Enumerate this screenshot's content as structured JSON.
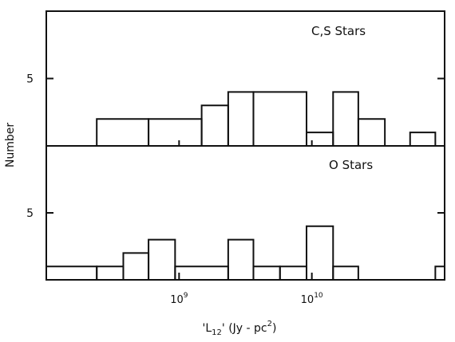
{
  "chart_data": [
    {
      "type": "bar",
      "panel_label": "C,S Stars",
      "xscale": "log",
      "xlim_log10": [
        8.0,
        11.0
      ],
      "ylim": [
        0,
        10
      ],
      "y_ticks": [
        {
          "value": 5,
          "label": "5"
        }
      ],
      "bins": [
        {
          "lo": 8.38,
          "hi": 8.77,
          "count": 2
        },
        {
          "lo": 8.77,
          "hi": 9.17,
          "count": 2
        },
        {
          "lo": 9.17,
          "hi": 9.37,
          "count": 3
        },
        {
          "lo": 9.37,
          "hi": 9.56,
          "count": 4
        },
        {
          "lo": 9.56,
          "hi": 9.96,
          "count": 4
        },
        {
          "lo": 9.96,
          "hi": 10.16,
          "count": 1
        },
        {
          "lo": 10.16,
          "hi": 10.35,
          "count": 4
        },
        {
          "lo": 10.35,
          "hi": 10.55,
          "count": 2
        },
        {
          "lo": 10.55,
          "hi": 10.74,
          "count": 0
        },
        {
          "lo": 10.74,
          "hi": 10.93,
          "count": 1
        }
      ]
    },
    {
      "type": "bar",
      "panel_label": "O Stars",
      "xscale": "log",
      "xlim_log10": [
        8.0,
        11.0
      ],
      "ylim": [
        0,
        10
      ],
      "y_ticks": [
        {
          "value": 5,
          "label": "5"
        }
      ],
      "bins": [
        {
          "lo": 8.0,
          "hi": 8.38,
          "count": 1
        },
        {
          "lo": 8.38,
          "hi": 8.58,
          "count": 1
        },
        {
          "lo": 8.58,
          "hi": 8.77,
          "count": 2
        },
        {
          "lo": 8.77,
          "hi": 8.97,
          "count": 3
        },
        {
          "lo": 8.97,
          "hi": 9.37,
          "count": 1
        },
        {
          "lo": 9.37,
          "hi": 9.56,
          "count": 3
        },
        {
          "lo": 9.56,
          "hi": 9.76,
          "count": 1
        },
        {
          "lo": 9.76,
          "hi": 9.96,
          "count": 1
        },
        {
          "lo": 9.96,
          "hi": 10.16,
          "count": 4
        },
        {
          "lo": 10.16,
          "hi": 10.35,
          "count": 1
        },
        {
          "lo": 10.93,
          "hi": 11.0,
          "count": 1
        }
      ]
    }
  ],
  "x_ticks": [
    {
      "base": "10",
      "exp": "9",
      "log10": 9
    },
    {
      "base": "10",
      "exp": "10",
      "log10": 10
    }
  ],
  "ylabel": "Number",
  "xlabel": {
    "pre": "'L",
    "sub": "12",
    "mid": "' (Jy - pc",
    "sup": "2",
    "post": ")"
  }
}
